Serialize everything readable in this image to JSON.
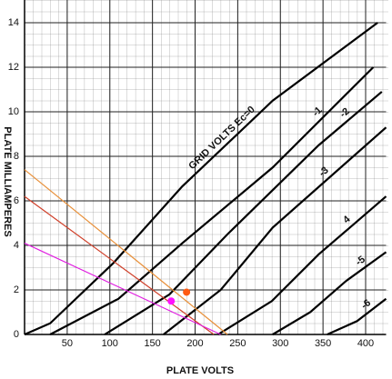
{
  "chart_data": {
    "type": "line",
    "x_label": "PLATE VOLTS",
    "y_label": "PLATE MILLIAMPERES",
    "xlim": [
      0,
      424
    ],
    "ylim": [
      0,
      14
    ],
    "xticks": [
      50,
      100,
      150,
      200,
      250,
      300,
      350,
      400
    ],
    "yticks": [
      0,
      2,
      4,
      6,
      8,
      10,
      12,
      14
    ],
    "grid": true,
    "series": [
      {
        "name": "GRID VOLTS Ec=0",
        "color": "#000000",
        "x": [
          0,
          30,
          104,
          185,
          291,
          414
        ],
        "values": [
          0,
          0.5,
          3.2,
          6.65,
          10.5,
          14
        ]
      },
      {
        "name": "-1",
        "color": "#000000",
        "x": [
          30,
          110,
          185,
          291,
          409
        ],
        "values": [
          0,
          1.6,
          4.1,
          7.5,
          12
        ]
      },
      {
        "name": "-2",
        "color": "#000000",
        "x": [
          94,
          170,
          238,
          345,
          419
        ],
        "values": [
          0,
          1.8,
          4.5,
          8.5,
          10.9
        ]
      },
      {
        "name": "-3",
        "color": "#000000",
        "x": [
          163,
          230,
          291,
          424
        ],
        "values": [
          0,
          2.0,
          4.8,
          9.3
        ]
      },
      {
        "name": "4",
        "color": "#000000",
        "x": [
          227,
          290,
          345,
          424
        ],
        "values": [
          0,
          1.5,
          3.6,
          6.2
        ]
      },
      {
        "name": "-5",
        "color": "#000000",
        "x": [
          291,
          335,
          377,
          424
        ],
        "values": [
          0,
          1.0,
          2.4,
          3.7
        ]
      },
      {
        "name": "-6",
        "color": "#000000",
        "x": [
          355,
          390,
          424
        ],
        "values": [
          0,
          0.6,
          1.6
        ]
      },
      {
        "color": "#e8903a",
        "x": [
          0,
          238
        ],
        "values": [
          7.4,
          0
        ]
      },
      {
        "color": "#d0402a",
        "x": [
          0,
          222
        ],
        "values": [
          6.2,
          0
        ]
      },
      {
        "color": "#e020e0",
        "x": [
          0,
          230
        ],
        "values": [
          4.1,
          0
        ]
      }
    ],
    "markers": [
      {
        "color": "#ff5a10",
        "x": 190,
        "y": 1.9
      },
      {
        "color": "#ff10ff",
        "x": 172,
        "y": 1.5
      }
    ]
  }
}
